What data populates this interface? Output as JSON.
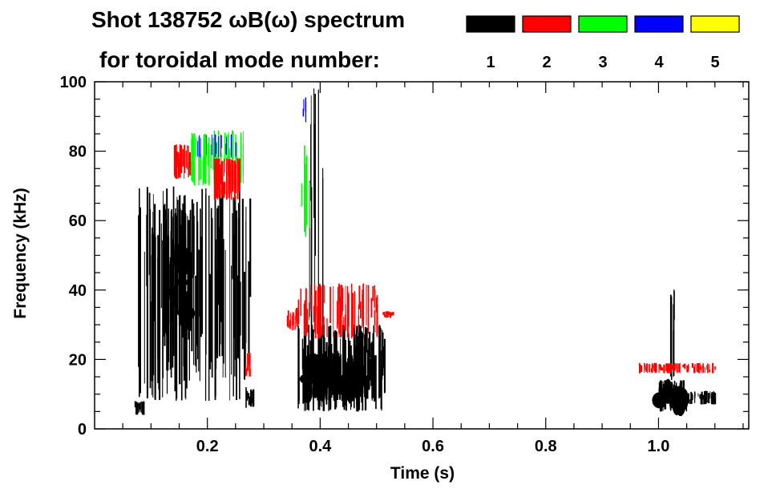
{
  "chart_data": {
    "type": "spectrogram",
    "title_line1": "Shot 138752 ωB(ω) spectrum",
    "title_line2": "for toroidal mode number:",
    "xlabel": "Time (s)",
    "ylabel": "Frequency (kHz)",
    "xlim": [
      0.0,
      1.16
    ],
    "ylim": [
      0,
      100
    ],
    "x_ticks": [
      0.2,
      0.4,
      0.6,
      0.8,
      1.0
    ],
    "x_tick_labels": [
      "0.2",
      "0.4",
      "0.6",
      "0.8",
      "1.0"
    ],
    "y_ticks": [
      0,
      20,
      40,
      60,
      80,
      100
    ],
    "y_tick_labels": [
      "0",
      "20",
      "40",
      "60",
      "80",
      "100"
    ],
    "legend": [
      {
        "label": "1",
        "color": "#000000"
      },
      {
        "label": "2",
        "color": "#ff0000"
      },
      {
        "label": "3",
        "color": "#00ff00"
      },
      {
        "label": "4",
        "color": "#0000ff"
      },
      {
        "label": "5",
        "color": "#ffff00"
      }
    ],
    "regions": [
      {
        "mode": "1",
        "t0": 0.075,
        "t1": 0.275,
        "f0": 8,
        "f1": 70,
        "density": 0.55
      },
      {
        "mode": "1",
        "t0": 0.12,
        "t1": 0.17,
        "f0": 25,
        "f1": 65,
        "density": 0.85
      },
      {
        "mode": "1",
        "t0": 0.07,
        "t1": 0.09,
        "f0": 4,
        "f1": 8,
        "density": 0.6
      },
      {
        "mode": "1",
        "t0": 0.265,
        "t1": 0.28,
        "f0": 6,
        "f1": 12,
        "density": 0.7
      },
      {
        "mode": "1",
        "t0": 0.36,
        "t1": 0.52,
        "f0": 5,
        "f1": 30,
        "density": 0.65
      },
      {
        "mode": "1",
        "t0": 0.37,
        "t1": 0.47,
        "f0": 8,
        "f1": 22,
        "density": 0.9
      },
      {
        "mode": "1",
        "t0": 0.38,
        "t1": 0.405,
        "f0": 25,
        "f1": 100,
        "density": 0.35
      },
      {
        "mode": "1",
        "t0": 1.0,
        "t1": 1.05,
        "f0": 5,
        "f1": 14,
        "density": 0.9
      },
      {
        "mode": "1",
        "t0": 1.05,
        "t1": 1.1,
        "f0": 7,
        "f1": 11,
        "density": 0.6
      },
      {
        "mode": "1",
        "t0": 1.02,
        "t1": 1.03,
        "f0": 12,
        "f1": 42,
        "density": 0.5
      },
      {
        "mode": "2",
        "t0": 0.14,
        "t1": 0.17,
        "f0": 72,
        "f1": 82,
        "density": 0.7
      },
      {
        "mode": "2",
        "t0": 0.21,
        "t1": 0.26,
        "f0": 66,
        "f1": 78,
        "density": 0.75
      },
      {
        "mode": "2",
        "t0": 0.265,
        "t1": 0.275,
        "f0": 15,
        "f1": 22,
        "density": 0.6
      },
      {
        "mode": "2",
        "t0": 0.36,
        "t1": 0.5,
        "f0": 26,
        "f1": 42,
        "density": 0.45
      },
      {
        "mode": "2",
        "t0": 0.34,
        "t1": 0.36,
        "f0": 28,
        "f1": 35,
        "density": 0.6
      },
      {
        "mode": "2",
        "t0": 0.51,
        "t1": 0.53,
        "f0": 32,
        "f1": 34,
        "density": 0.6
      },
      {
        "mode": "2",
        "t0": 0.965,
        "t1": 1.1,
        "f0": 16,
        "f1": 19,
        "density": 0.55
      },
      {
        "mode": "3",
        "t0": 0.17,
        "t1": 0.27,
        "f0": 70,
        "f1": 86,
        "density": 0.4
      },
      {
        "mode": "3",
        "t0": 0.365,
        "t1": 0.38,
        "f0": 55,
        "f1": 82,
        "density": 0.35
      },
      {
        "mode": "4",
        "t0": 0.18,
        "t1": 0.25,
        "f0": 78,
        "f1": 85,
        "density": 0.2
      },
      {
        "mode": "4",
        "t0": 0.365,
        "t1": 0.375,
        "f0": 88,
        "f1": 96,
        "density": 0.3
      }
    ]
  }
}
